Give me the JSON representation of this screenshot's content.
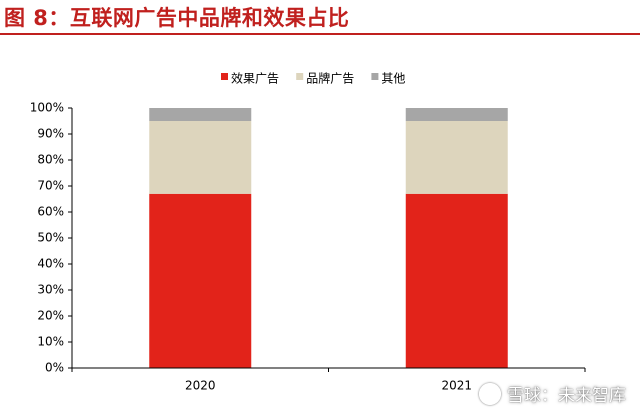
{
  "figure": {
    "title": "图 8：互联网广告中品牌和效果占比"
  },
  "watermark": {
    "text": "雪球：未来智库"
  },
  "colors": {
    "title": "#c0201e",
    "axis": "#000000"
  },
  "chart_data": {
    "type": "bar",
    "stacked": true,
    "categories": [
      "2020",
      "2021"
    ],
    "series": [
      {
        "name": "效果广告",
        "color": "#e2231a",
        "values": [
          67,
          67
        ]
      },
      {
        "name": "品牌广告",
        "color": "#ddd5bd",
        "values": [
          28,
          28
        ]
      },
      {
        "name": "其他",
        "color": "#a6a6a6",
        "values": [
          5,
          5
        ]
      }
    ],
    "ylim": [
      0,
      100
    ],
    "yticks": [
      "0%",
      "10%",
      "20%",
      "30%",
      "40%",
      "50%",
      "60%",
      "70%",
      "80%",
      "90%",
      "100%"
    ],
    "xlabel": "",
    "ylabel": "",
    "grid": false,
    "legend": "top-center"
  }
}
